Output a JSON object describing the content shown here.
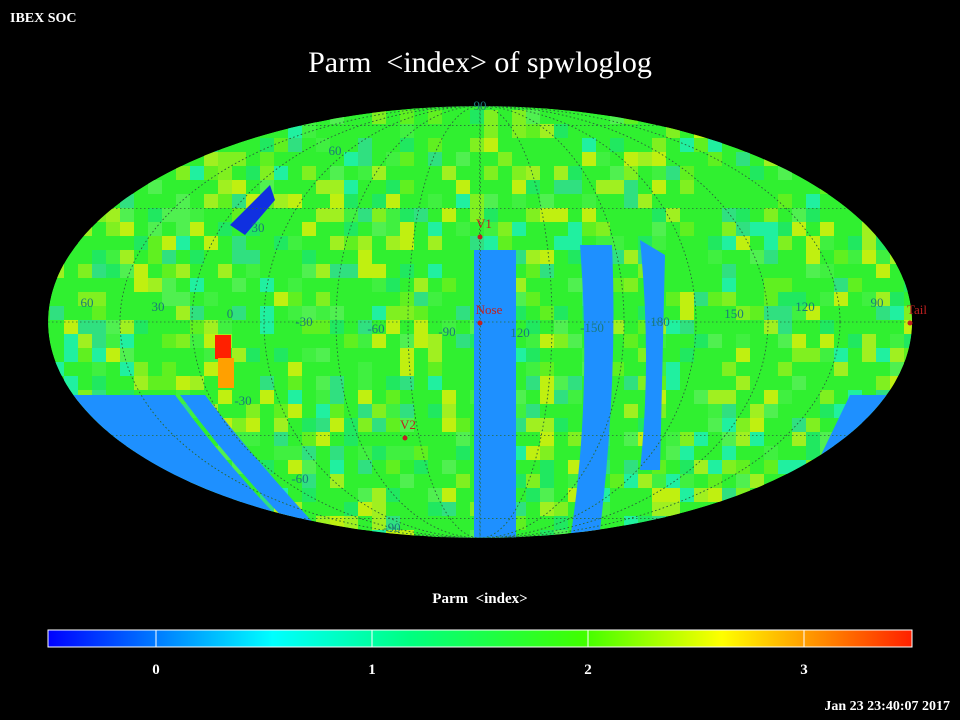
{
  "header": {
    "org": "IBEX SOC",
    "timestamp": "Jan 23 23:40:07 2017"
  },
  "title": "Parm  <index> of spwloglog",
  "map": {
    "latitude_labels": [
      "90",
      "60",
      "30",
      "-30",
      "-60",
      "-90"
    ],
    "longitude_labels": [
      "60",
      "30",
      "0",
      "-30",
      "-60",
      "-90",
      "120",
      "-150",
      "180",
      "150",
      "120",
      "90"
    ],
    "markers": [
      "V1",
      "Nose",
      "V2",
      "Tail"
    ]
  },
  "colorbar": {
    "label": "Parm  <index>",
    "range": [
      -0.5,
      3.5
    ],
    "ticks": [
      0,
      1,
      2,
      3
    ]
  }
}
